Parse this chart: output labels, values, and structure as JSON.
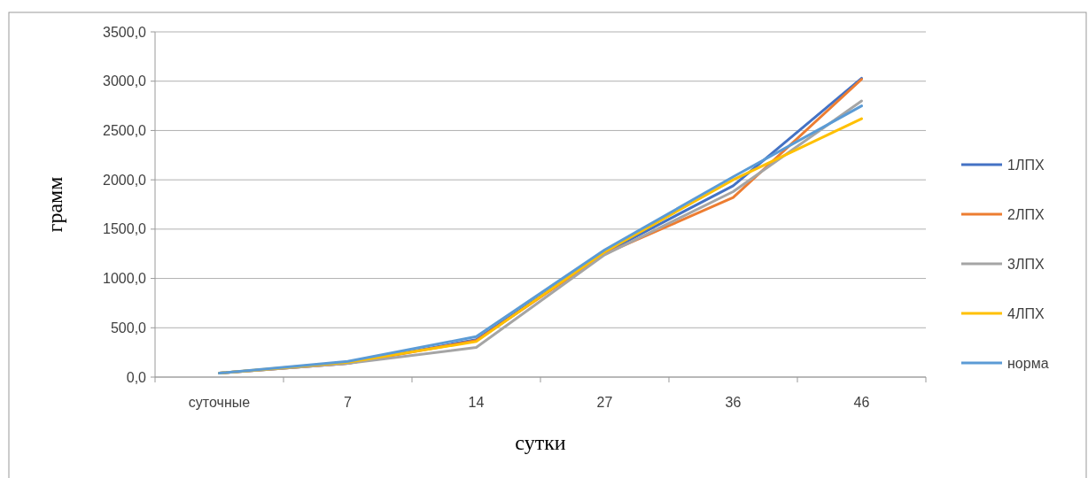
{
  "chart_data": {
    "type": "line",
    "xlabel": "сутки",
    "ylabel": "грамм",
    "categories": [
      "суточные",
      "7",
      "14",
      "27",
      "36",
      "46"
    ],
    "series": [
      {
        "name": "1ЛПХ",
        "color": "#4472c4",
        "values": [
          40,
          140,
          380,
          1260,
          1940,
          3030
        ]
      },
      {
        "name": "2ЛПХ",
        "color": "#ed7d31",
        "values": [
          40,
          140,
          370,
          1250,
          1820,
          3020
        ]
      },
      {
        "name": "3ЛПХ",
        "color": "#a5a5a5",
        "values": [
          40,
          140,
          300,
          1240,
          1880,
          2800
        ]
      },
      {
        "name": "4ЛПХ",
        "color": "#ffc000",
        "values": [
          40,
          150,
          360,
          1270,
          2000,
          2620
        ]
      },
      {
        "name": "норма",
        "color": "#5b9bd5",
        "values": [
          40,
          160,
          410,
          1290,
          2030,
          2750
        ]
      }
    ],
    "ylim": [
      0,
      3500
    ],
    "yticks": [
      {
        "value": 0,
        "label": "0,0"
      },
      {
        "value": 500,
        "label": "500,0"
      },
      {
        "value": 1000,
        "label": "1000,0"
      },
      {
        "value": 1500,
        "label": "1500,0"
      },
      {
        "value": 2000,
        "label": "2000,0"
      },
      {
        "value": 2500,
        "label": "2500,0"
      },
      {
        "value": 3000,
        "label": "3000,0"
      },
      {
        "value": 3500,
        "label": "3500,0"
      }
    ],
    "grid": "y",
    "legend": "right",
    "marker": "none",
    "line_style": "solid"
  }
}
